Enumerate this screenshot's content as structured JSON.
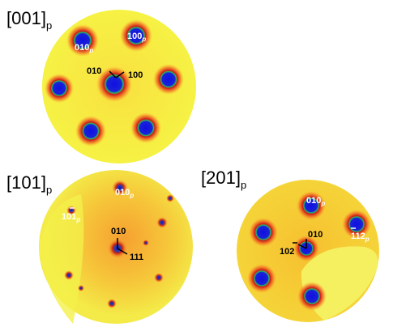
{
  "panels": [
    {
      "zone": "[001]",
      "zone_sub": "p",
      "labels": [
        {
          "text": "010",
          "sub": "p"
        },
        {
          "text": "100",
          "sub": "p"
        },
        {
          "text": "010"
        },
        {
          "text": "100"
        }
      ]
    },
    {
      "zone": "[101]",
      "zone_sub": "p",
      "labels": [
        {
          "text": "010",
          "sub": "p"
        },
        {
          "text": "101",
          "sub": "p"
        },
        {
          "text": "010"
        },
        {
          "text": "111"
        }
      ]
    },
    {
      "zone": "[201]",
      "zone_sub": "p",
      "labels": [
        {
          "text": "010",
          "sub": "p"
        },
        {
          "text": "112",
          "sub": "p"
        },
        {
          "text": "010"
        },
        {
          "text": "102"
        }
      ]
    }
  ]
}
